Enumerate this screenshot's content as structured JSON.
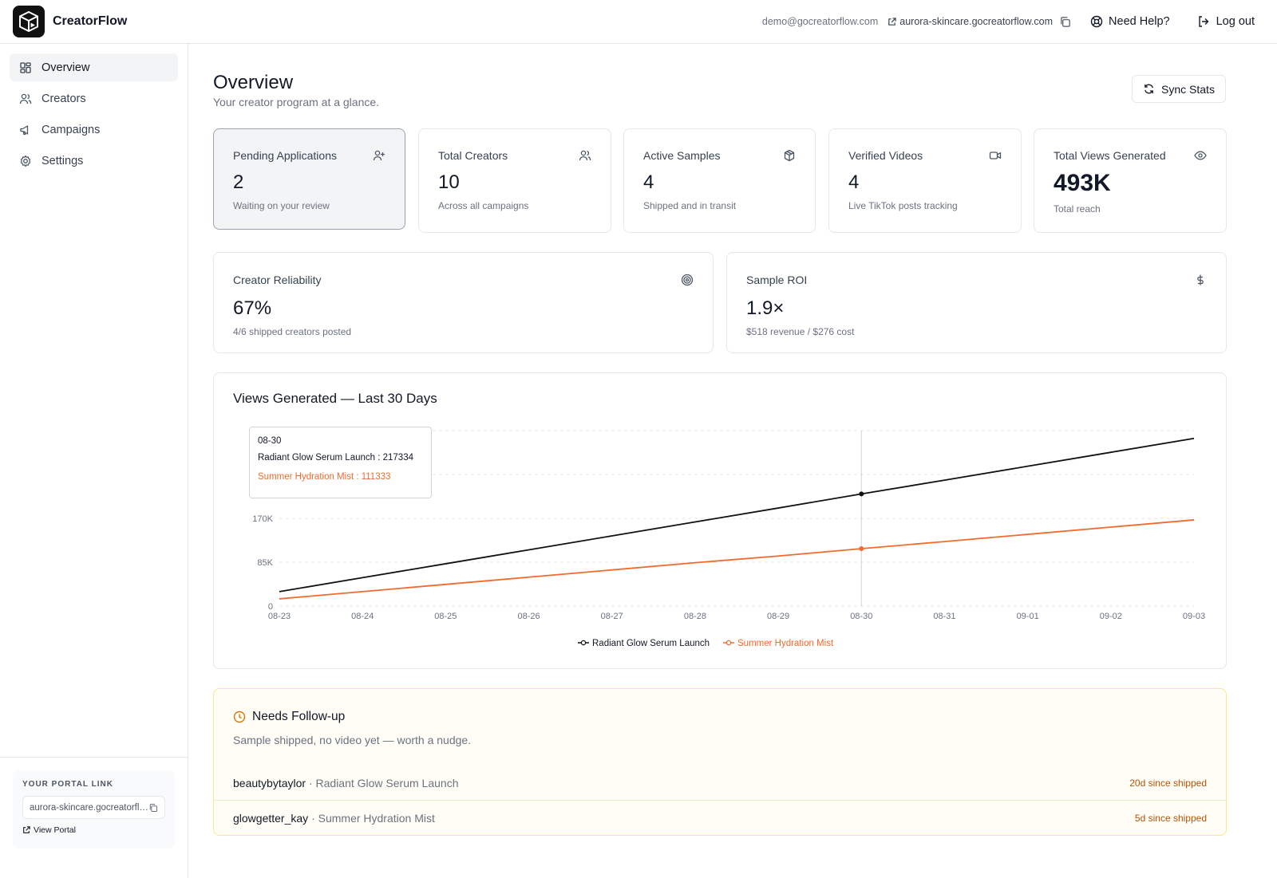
{
  "app": {
    "name": "CreatorFlow"
  },
  "topbar": {
    "email": "demo@gocreatorflow.com",
    "portal_domain": "aurora-skincare.gocreatorflow.com",
    "help_label": "Need Help?",
    "logout_label": "Log out"
  },
  "sidebar": {
    "items": [
      {
        "label": "Overview",
        "icon": "grid-icon",
        "active": true
      },
      {
        "label": "Creators",
        "icon": "users-icon",
        "active": false
      },
      {
        "label": "Campaigns",
        "icon": "megaphone-icon",
        "active": false
      },
      {
        "label": "Settings",
        "icon": "gear-icon",
        "active": false
      }
    ],
    "portal": {
      "title": "YOUR PORTAL LINK",
      "link": "aurora-skincare.gocreatorflow.com",
      "view_label": "View Portal"
    }
  },
  "page": {
    "title": "Overview",
    "subtitle": "Your creator program at a glance.",
    "sync_label": "Sync Stats"
  },
  "stats": [
    {
      "label": "Pending Applications",
      "value": "2",
      "note": "Waiting on your review",
      "icon": "user-plus-icon"
    },
    {
      "label": "Total Creators",
      "value": "10",
      "note": "Across all campaigns",
      "icon": "users-icon"
    },
    {
      "label": "Active Samples",
      "value": "4",
      "note": "Shipped and in transit",
      "icon": "package-icon"
    },
    {
      "label": "Verified Videos",
      "value": "4",
      "note": "Live TikTok posts tracking",
      "icon": "video-icon"
    },
    {
      "label": "Total Views Generated",
      "value": "493K",
      "note": "Total reach",
      "icon": "eye-icon"
    }
  ],
  "metrics": [
    {
      "label": "Creator Reliability",
      "value": "67%",
      "note": "4/6 shipped creators posted",
      "icon": "target-icon"
    },
    {
      "label": "Sample ROI",
      "value": "1.9×",
      "note": "$518 revenue / $276 cost",
      "icon": "dollar-icon"
    }
  ],
  "chart": {
    "title": "Views Generated — Last 30 Days",
    "tooltip": {
      "date": "08-30",
      "line1": "Radiant Glow Serum Launch : 217334",
      "line2": "Summer Hydration Mist : 111333"
    }
  },
  "chart_data": {
    "type": "line",
    "x": [
      "08-23",
      "08-24",
      "08-25",
      "08-26",
      "08-27",
      "08-28",
      "08-29",
      "08-30",
      "08-31",
      "09-01",
      "09-02",
      "09-03"
    ],
    "series": [
      {
        "name": "Radiant Glow Serum Launch",
        "color": "#111111",
        "values": [
          28000,
          55000,
          82000,
          109000,
          136000,
          163000,
          190000,
          217334,
          244000,
          271000,
          298000,
          325000
        ]
      },
      {
        "name": "Summer Hydration Mist",
        "color": "#f26a2e",
        "values": [
          14000,
          28000,
          42000,
          56000,
          70000,
          84000,
          97000,
          111333,
          125000,
          139000,
          153000,
          167000
        ]
      }
    ],
    "y_ticks": [
      "0",
      "85K",
      "170K"
    ],
    "ylim": [
      0,
      340000
    ],
    "grid": true,
    "legend": "bottom-center",
    "highlight_x": "08-30"
  },
  "followup": {
    "title": "Needs Follow-up",
    "subtitle": "Sample shipped, no video yet — worth a nudge.",
    "rows": [
      {
        "name": "beautybytaylor",
        "campaign": "· Radiant Glow Serum Launch",
        "since": "20d since shipped"
      },
      {
        "name": "glowgetter_kay",
        "campaign": "· Summer Hydration Mist",
        "since": "5d since shipped"
      }
    ]
  }
}
